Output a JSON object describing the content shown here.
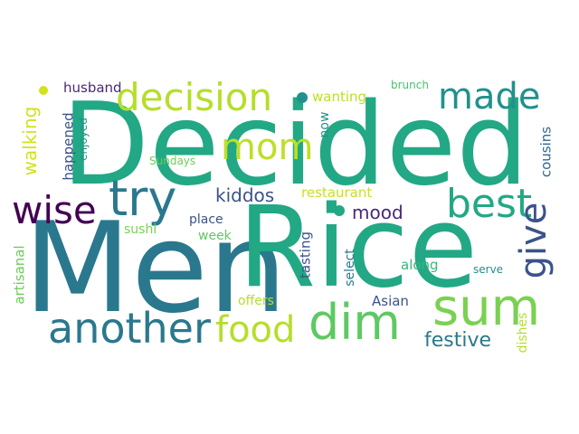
{
  "words": [
    {
      "id": "men",
      "text": "Men",
      "color": "#2a788e"
    },
    {
      "id": "rice",
      "text": "Rice",
      "color": "#22a884"
    },
    {
      "id": "decided",
      "text": "Decided",
      "color": "#22a884"
    },
    {
      "id": "sum",
      "text": "sum",
      "color": "#7ad151"
    },
    {
      "id": "dim",
      "text": "dim",
      "color": "#5ec962"
    },
    {
      "id": "try",
      "text": "try",
      "color": "#2a788e"
    },
    {
      "id": "another",
      "text": "another",
      "color": "#2a788e"
    },
    {
      "id": "decision",
      "text": "decision",
      "color": "#b5de2b"
    },
    {
      "id": "best",
      "text": "best",
      "color": "#22a884"
    },
    {
      "id": "made",
      "text": "made",
      "color": "#21918c"
    },
    {
      "id": "mom",
      "text": "mom",
      "color": "#bddf26"
    },
    {
      "id": "wise",
      "text": "wise",
      "color": "#440154"
    },
    {
      "id": "food",
      "text": "food",
      "color": "#b5de2b"
    },
    {
      "id": "give",
      "text": "give",
      "color": "#3b528b"
    },
    {
      "id": "kiddos",
      "text": "kiddos",
      "color": "#3b528b"
    },
    {
      "id": "festive",
      "text": "festive",
      "color": "#2a788e"
    },
    {
      "id": "mood",
      "text": "mood",
      "color": "#482878"
    },
    {
      "id": "restaurant",
      "text": "restaurant",
      "color": "#c8e020"
    },
    {
      "id": "wanting",
      "text": "wanting",
      "color": "#bddf26"
    },
    {
      "id": "husband",
      "text": "husband",
      "color": "#482878"
    },
    {
      "id": "walking",
      "text": "walking",
      "color": "#d2e21b"
    },
    {
      "id": "happened",
      "text": "happened",
      "color": "#3b528b"
    },
    {
      "id": "enjoyed",
      "text": "enjoyed",
      "color": "#21918c"
    },
    {
      "id": "sundays",
      "text": "Sundays",
      "color": "#6ccd5a"
    },
    {
      "id": "sushi",
      "text": "sushi",
      "color": "#7ad151"
    },
    {
      "id": "week",
      "text": "week",
      "color": "#5ec962"
    },
    {
      "id": "place",
      "text": "place",
      "color": "#3b528b"
    },
    {
      "id": "tasting",
      "text": "tasting",
      "color": "#3b528b"
    },
    {
      "id": "select",
      "text": "select",
      "color": "#2a788e"
    },
    {
      "id": "along",
      "text": "along",
      "color": "#35b779"
    },
    {
      "id": "serve",
      "text": "serve",
      "color": "#21918c"
    },
    {
      "id": "offers",
      "text": "offers",
      "color": "#b5de2b"
    },
    {
      "id": "asian",
      "text": "Asian",
      "color": "#3b528b"
    },
    {
      "id": "cousins",
      "text": "cousins",
      "color": "#31688e"
    },
    {
      "id": "dishes",
      "text": "dishes",
      "color": "#b5de2b"
    },
    {
      "id": "artisanal",
      "text": "artisanal",
      "color": "#6ccd5a"
    },
    {
      "id": "brunch",
      "text": "brunch",
      "color": "#4ac16d"
    },
    {
      "id": "now",
      "text": "now",
      "color": "#21918c"
    }
  ]
}
